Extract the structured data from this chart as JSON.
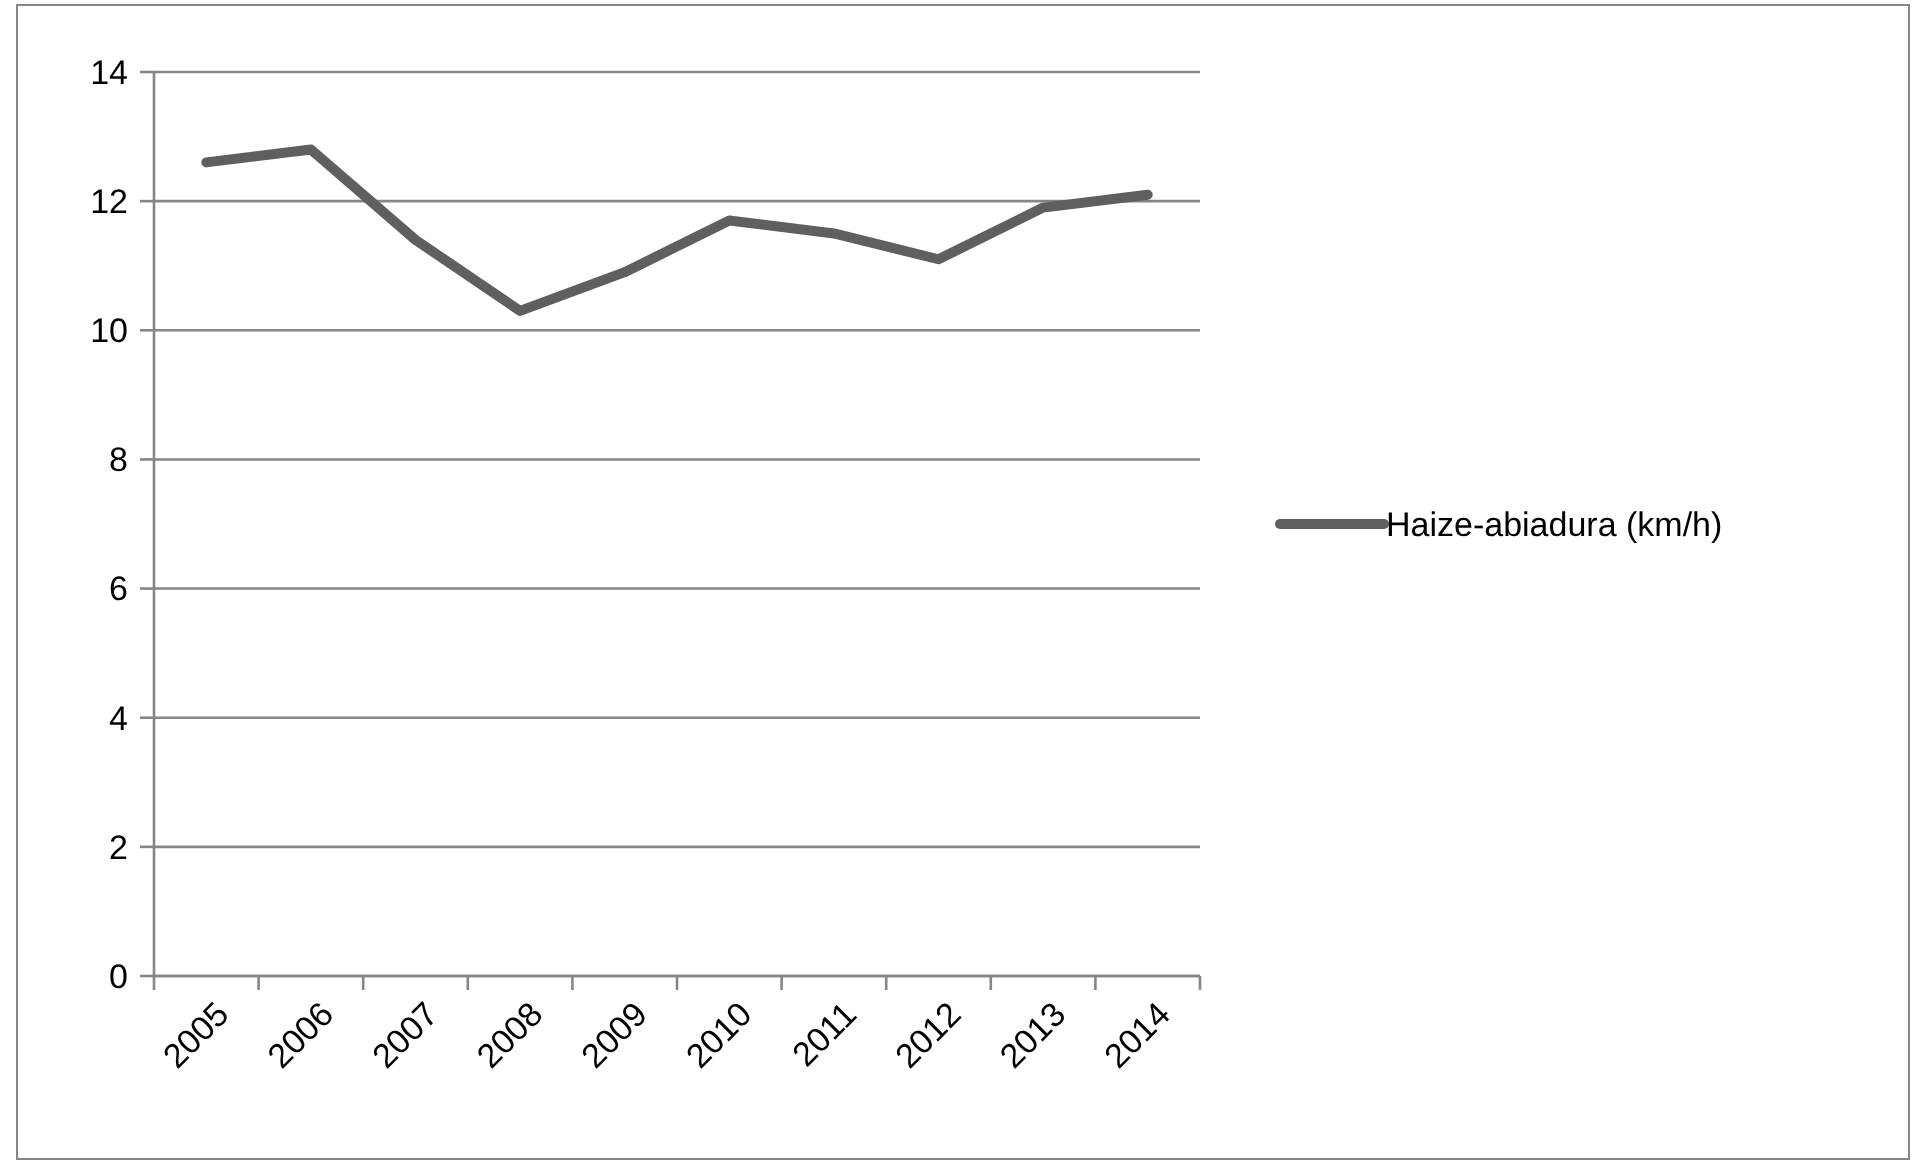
{
  "chart_data": {
    "type": "line",
    "categories": [
      "2005",
      "2006",
      "2007",
      "2008",
      "2009",
      "2010",
      "2011",
      "2012",
      "2013",
      "2014"
    ],
    "series": [
      {
        "name": "Haize-abiadura (km/h)",
        "color": "#5f5f5f",
        "values": [
          12.6,
          12.8,
          11.4,
          10.3,
          10.9,
          11.7,
          11.5,
          11.1,
          11.9,
          12.1
        ]
      }
    ],
    "ylim": [
      0,
      14
    ],
    "yticks": [
      0,
      2,
      4,
      6,
      8,
      10,
      12,
      14
    ],
    "grid": "y",
    "legend": "right"
  }
}
